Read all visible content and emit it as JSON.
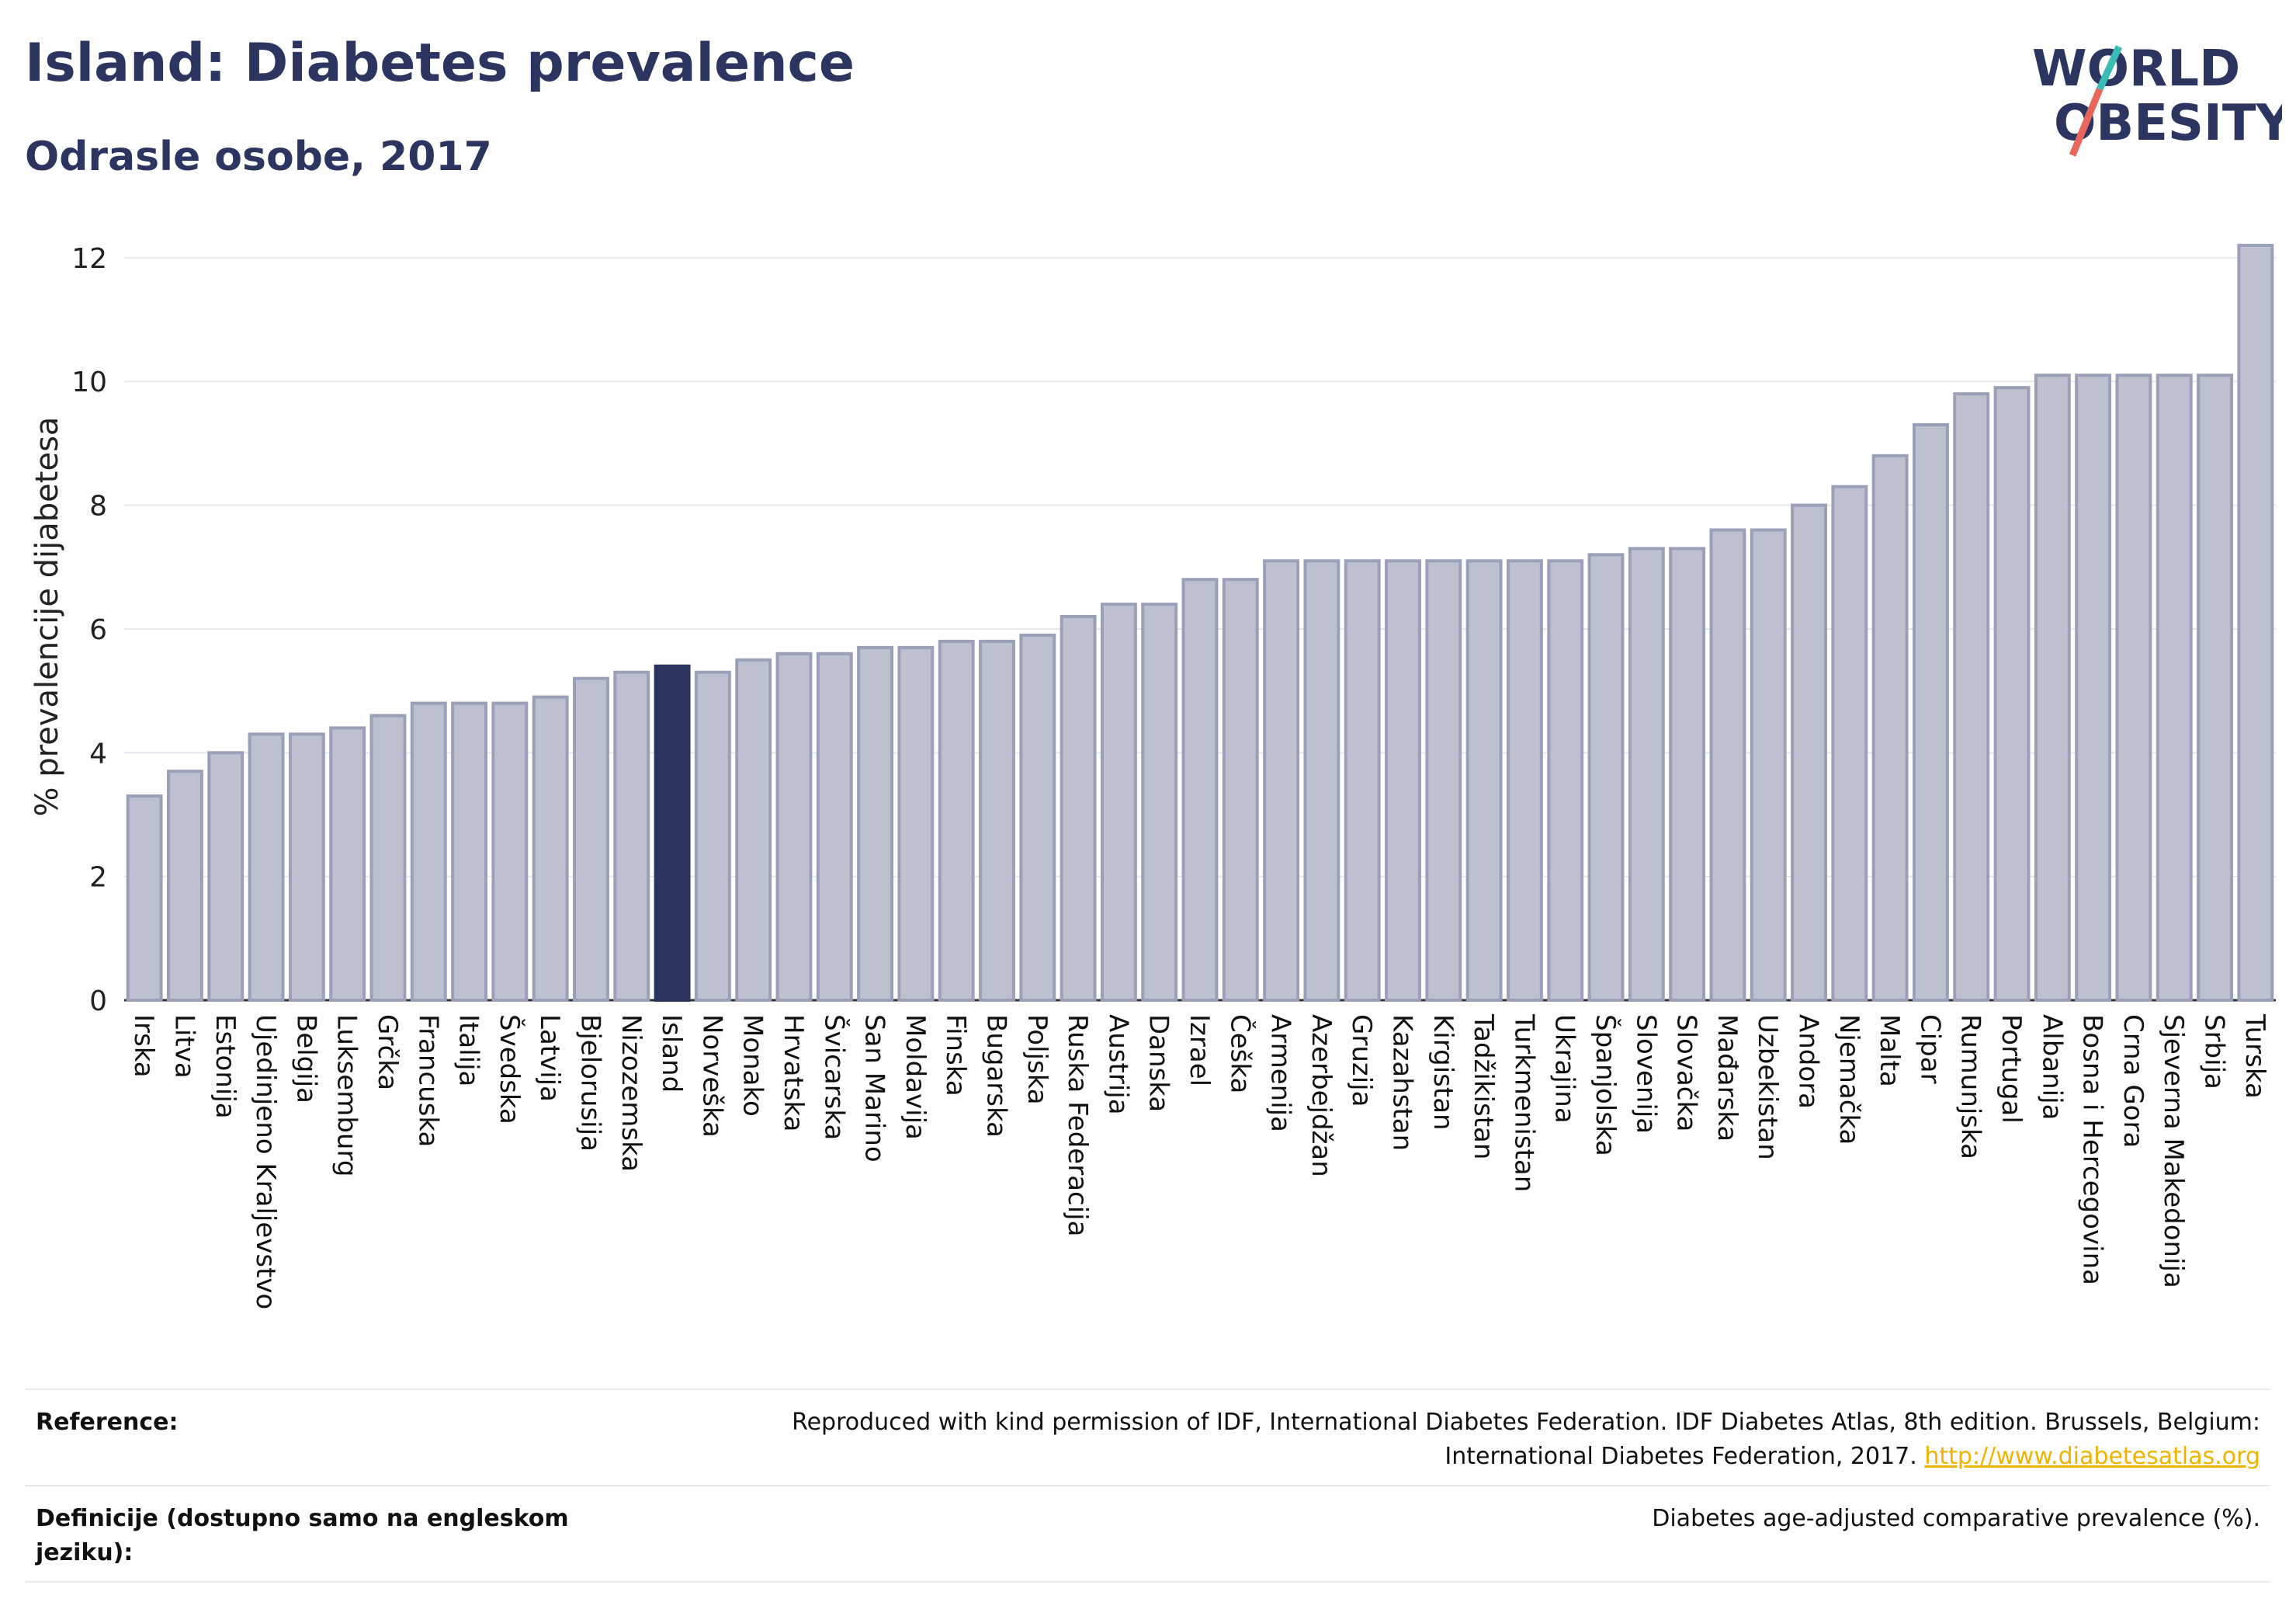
{
  "title": "Island: Diabetes prevalence",
  "subtitle": "Odrasle osobe, 2017",
  "logo": {
    "line1": "WORLD",
    "line2": "OBESITY"
  },
  "colors": {
    "highlight": "#2b3560",
    "bar": "#bcc0cf",
    "bar_stroke": "#9aa0b8",
    "brand": "#2b3560",
    "logo_slash_top": "#3bbdb5",
    "logo_slash_bottom": "#e8675a"
  },
  "chart_data": {
    "type": "bar",
    "ylabel": "% prevalencije dijabetesa",
    "ylim": [
      0,
      12.4
    ],
    "yticks": [
      0,
      2,
      4,
      6,
      8,
      10,
      12
    ],
    "grid": true,
    "highlight": "Island",
    "categories": [
      "Irska",
      "Litva",
      "Estonija",
      "Ujedinjeno Kraljevstvo",
      "Belgija",
      "Luksemburg",
      "Grčka",
      "Francuska",
      "Italija",
      "Švedska",
      "Latvija",
      "Bjelorusija",
      "Nizozemska",
      "Island",
      "Norveška",
      "Monako",
      "Hrvatska",
      "Švicarska",
      "San Marino",
      "Moldavija",
      "Finska",
      "Bugarska",
      "Poljska",
      "Ruska Federacija",
      "Austrija",
      "Danska",
      "Izrael",
      "Češka",
      "Armenija",
      "Azerbejdžan",
      "Gruzija",
      "Kazahstan",
      "Kirgistan",
      "Tadžikistan",
      "Turkmenistan",
      "Ukrajina",
      "Španjolska",
      "Slovenija",
      "Slovačka",
      "Mađarska",
      "Uzbekistan",
      "Andora",
      "Njemačka",
      "Malta",
      "Cipar",
      "Rumunjska",
      "Portugal",
      "Albanija",
      "Bosna i Hercegovina",
      "Crna Gora",
      "Sjeverna Makedonija",
      "Srbija",
      "Turska"
    ],
    "values": [
      3.3,
      3.7,
      4.0,
      4.3,
      4.3,
      4.4,
      4.6,
      4.8,
      4.8,
      4.8,
      4.9,
      5.2,
      5.3,
      5.4,
      5.3,
      5.5,
      5.6,
      5.6,
      5.7,
      5.7,
      5.8,
      5.8,
      5.9,
      6.2,
      6.4,
      6.4,
      6.8,
      6.8,
      7.1,
      7.1,
      7.1,
      7.1,
      7.1,
      7.1,
      7.1,
      7.1,
      7.2,
      7.3,
      7.3,
      7.6,
      7.6,
      8.0,
      8.3,
      8.8,
      9.3,
      9.8,
      9.9,
      10.1,
      10.1,
      10.1,
      10.1,
      10.1,
      12.2
    ]
  },
  "reference": {
    "label": "Reference:",
    "text": "Reproduced with kind permission of IDF, International Diabetes Federation. IDF Diabetes Atlas, 8th edition. Brussels, Belgium: International Diabetes Federation, 2017.",
    "link": "http://www.diabetesatlas.org"
  },
  "definition": {
    "label": "Definicije (dostupno samo na engleskom jeziku):",
    "text": "Diabetes age-adjusted comparative prevalence (%)."
  }
}
